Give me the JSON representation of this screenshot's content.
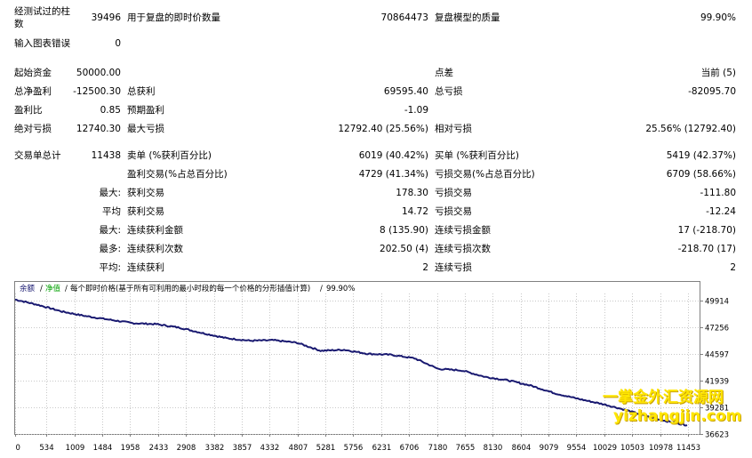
{
  "report": {
    "bars_tested_label": "经测试过的柱",
    "bars_tested_label2": "数",
    "bars_tested": "39496",
    "ticks_label": "用于复盘的即时价数量",
    "ticks": "70864473",
    "quality_label": "复盘模型的质量",
    "quality": "99.90%",
    "mismatch_label": "输入图表错误",
    "mismatch": "0",
    "deposit_label": "起始资金",
    "deposit": "50000.00",
    "spread_label": "点差",
    "spread": "当前 (5)",
    "net_profit_label": "总净盈利",
    "net_profit": "-12500.30",
    "gross_profit_label": "总获利",
    "gross_profit": "69595.40",
    "gross_loss_label": "总亏损",
    "gross_loss": "-82095.70",
    "profit_factor_label": "盈利比",
    "profit_factor": "0.85",
    "expected_payoff_label": "预期盈利",
    "expected_payoff": "-1.09",
    "abs_drawdown_label": "绝对亏损",
    "abs_drawdown": "12740.30",
    "max_drawdown_label": "最大亏损",
    "max_drawdown": "12792.40 (25.56%)",
    "rel_drawdown_label": "相对亏损",
    "rel_drawdown": "25.56% (12792.40)",
    "total_trades_label": "交易单总计",
    "total_trades": "11438",
    "short_label": "卖单 (%获利百分比)",
    "short": "6019 (40.42%)",
    "long_label": "买单 (%获利百分比)",
    "long": "5419 (42.37%)",
    "profit_trades_label": "盈利交易(%占总百分比)",
    "profit_trades": "4729 (41.34%)",
    "loss_trades_label": "亏损交易(%占总百分比)",
    "loss_trades": "6709 (58.66%)",
    "largest_label": "最大:",
    "largest_profit_label": "获利交易",
    "largest_profit": "178.30",
    "largest_loss_label": "亏损交易",
    "largest_loss": "-111.80",
    "average_label": "平均",
    "average_profit_label": "获利交易",
    "average_profit": "14.72",
    "average_loss_label": "亏损交易",
    "average_loss": "-12.24",
    "max_label": "最大:",
    "max_consec_wins_label": "连续获利金额",
    "max_consec_wins": "8 (135.90)",
    "max_consec_losses_label": "连续亏损金额",
    "max_consec_losses": "17 (-218.70)",
    "maximal_label": "最多:",
    "maximal_consec_profit_label": "连续获利次数",
    "maximal_consec_profit": "202.50 (4)",
    "maximal_consec_loss_label": "连续亏损次数",
    "maximal_consec_loss": "-218.70 (17)",
    "avg_consec_label": "平均:",
    "avg_consec_wins_label": "连续获利",
    "avg_consec_wins": "2",
    "avg_consec_losses_label": "连续亏损",
    "avg_consec_losses": "2"
  },
  "chart_header": {
    "balance_label": "余额",
    "equity_label": "净值",
    "model_label": "每个即时价格(基于所有可利用的最小时段的每一个价格的分形插值计算)",
    "quality": "99.90%"
  },
  "watermark": {
    "line1": "一掌金外汇资源网",
    "line2": "yizhangjin.com"
  },
  "colors": {
    "balance_line": "#191970",
    "equity_line": "#00a000",
    "watermark": "#ffe600",
    "grid": "#c8c8c8"
  },
  "chart_data": {
    "type": "line",
    "title": "",
    "xlabel": "",
    "ylabel": "",
    "x_ticks": [
      0,
      534,
      1009,
      1484,
      1958,
      2433,
      2908,
      3382,
      3857,
      4332,
      4807,
      5281,
      5756,
      6231,
      6706,
      7180,
      7655,
      8130,
      8604,
      9079,
      9554,
      10029,
      10503,
      10978,
      11453
    ],
    "y_ticks": [
      49914,
      47256,
      44597,
      41939,
      39281,
      36623
    ],
    "xlim": [
      0,
      11650
    ],
    "ylim": [
      36623,
      50600
    ],
    "grid": true,
    "series": [
      {
        "name": "余额",
        "x": [
          0,
          400,
          800,
          1200,
          1600,
          2000,
          2400,
          2800,
          3200,
          3600,
          4000,
          4400,
          4800,
          5200,
          5600,
          6000,
          6400,
          6800,
          7200,
          7600,
          8000,
          8400,
          8800,
          9200,
          9600,
          10000,
          10400,
          10800,
          11200,
          11438
        ],
        "values": [
          50000,
          49450,
          48800,
          48350,
          48000,
          47650,
          47550,
          47200,
          46650,
          46150,
          45900,
          45950,
          45700,
          44900,
          45000,
          44600,
          44500,
          44150,
          43100,
          42950,
          42300,
          41950,
          41400,
          40650,
          40100,
          39600,
          39000,
          38300,
          37750,
          37500
        ]
      }
    ]
  }
}
